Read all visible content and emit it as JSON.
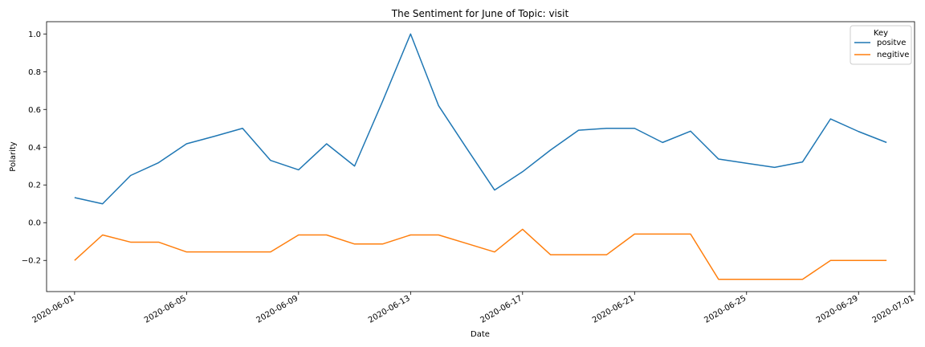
{
  "chart_data": {
    "type": "line",
    "title": "The Sentiment for June of Topic: visit",
    "xlabel": "Date",
    "ylabel": "Polarity",
    "x": [
      "2020-06-01",
      "2020-06-02",
      "2020-06-03",
      "2020-06-04",
      "2020-06-05",
      "2020-06-06",
      "2020-06-07",
      "2020-06-08",
      "2020-06-09",
      "2020-06-10",
      "2020-06-11",
      "2020-06-12",
      "2020-06-13",
      "2020-06-14",
      "2020-06-15",
      "2020-06-16",
      "2020-06-17",
      "2020-06-18",
      "2020-06-19",
      "2020-06-20",
      "2020-06-21",
      "2020-06-22",
      "2020-06-23",
      "2020-06-24",
      "2020-06-25",
      "2020-06-26",
      "2020-06-27",
      "2020-06-28",
      "2020-06-29",
      "2020-06-30"
    ],
    "series": [
      {
        "name": "positve",
        "color": "#1f77b4",
        "values": [
          0.133,
          0.1,
          0.25,
          0.318,
          0.418,
          0.458,
          0.5,
          0.33,
          0.28,
          0.418,
          0.3,
          0.643,
          1.0,
          0.62,
          0.395,
          0.173,
          0.27,
          0.385,
          0.49,
          0.5,
          0.5,
          0.425,
          0.485,
          0.337,
          0.315,
          0.293,
          0.322,
          0.55,
          0.483,
          0.425
        ]
      },
      {
        "name": "negitive",
        "color": "#ff7f0e",
        "values": [
          -0.2,
          -0.065,
          -0.103,
          -0.103,
          -0.155,
          -0.155,
          -0.155,
          -0.155,
          -0.065,
          -0.065,
          -0.113,
          -0.113,
          -0.065,
          -0.065,
          -0.11,
          -0.155,
          -0.035,
          -0.17,
          -0.17,
          -0.17,
          -0.06,
          -0.06,
          -0.06,
          -0.3,
          -0.3,
          -0.3,
          -0.3,
          -0.2,
          -0.2,
          -0.2
        ]
      }
    ],
    "xticks": [
      "2020-06-01",
      "2020-06-05",
      "2020-06-09",
      "2020-06-13",
      "2020-06-17",
      "2020-06-21",
      "2020-06-25",
      "2020-06-29",
      "2020-07-01"
    ],
    "yticks": [
      "−0.2",
      "0.0",
      "0.2",
      "0.4",
      "0.6",
      "0.8",
      "1.0"
    ],
    "ytick_values": [
      -0.2,
      0.0,
      0.2,
      0.4,
      0.6,
      0.8,
      1.0
    ],
    "xlim": [
      "2020-05-31",
      "2020-07-01"
    ],
    "ylim": [
      -0.365,
      1.065
    ],
    "grid": false,
    "legend": {
      "title": "Key",
      "placement": "top-right"
    }
  }
}
